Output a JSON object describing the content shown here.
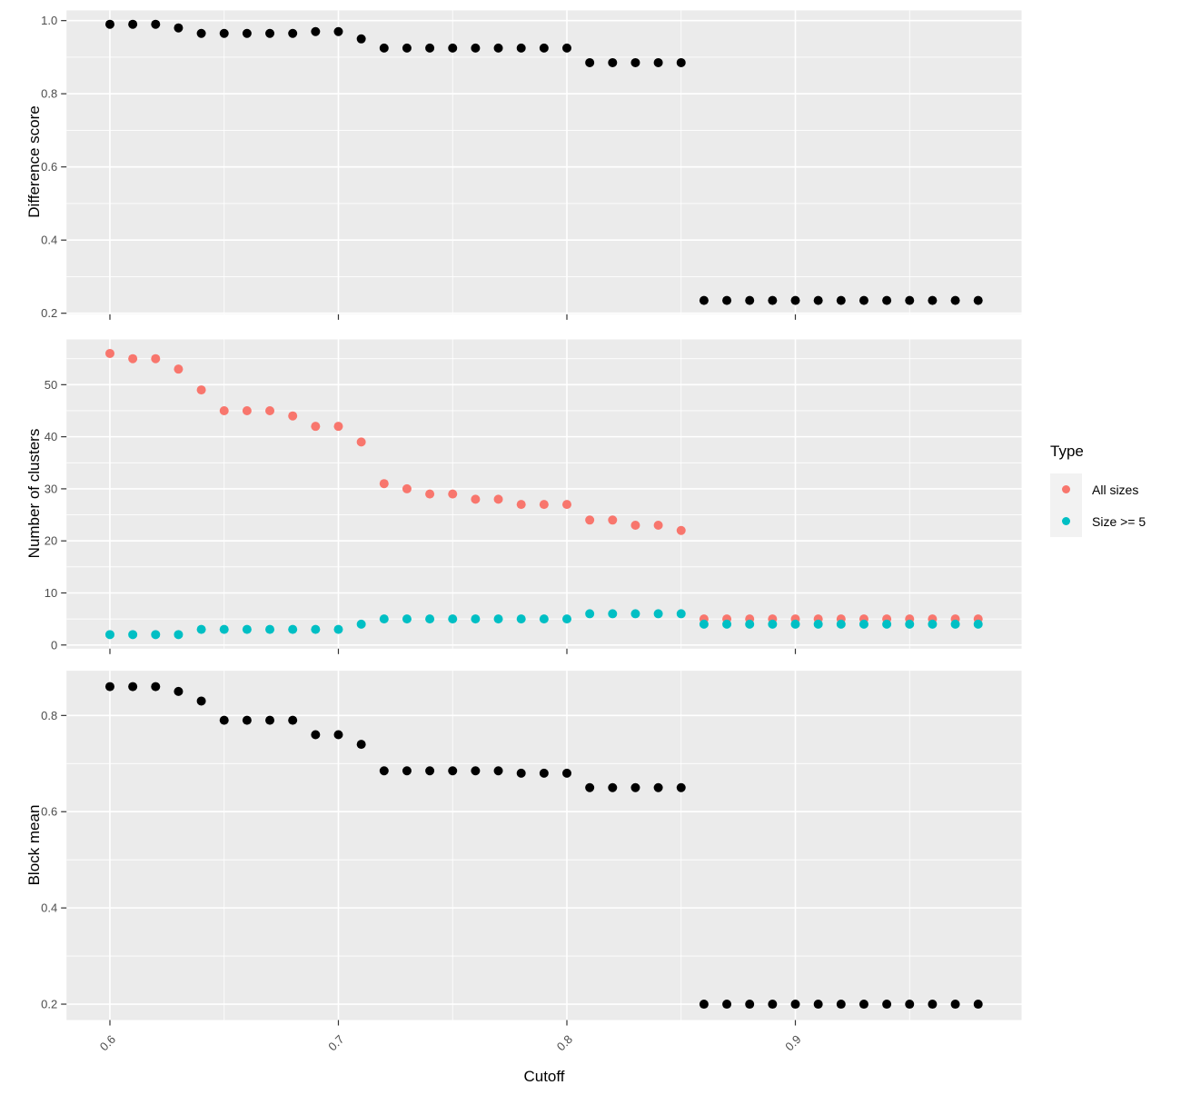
{
  "figure": {
    "x": [
      0.6,
      0.61,
      0.62,
      0.63,
      0.64,
      0.65,
      0.66,
      0.67,
      0.68,
      0.69,
      0.7,
      0.71,
      0.72,
      0.73,
      0.74,
      0.75,
      0.76,
      0.77,
      0.78,
      0.79,
      0.8,
      0.81,
      0.82,
      0.83,
      0.84,
      0.85,
      0.86,
      0.87,
      0.88,
      0.89,
      0.9,
      0.91,
      0.92,
      0.93,
      0.94,
      0.95,
      0.96,
      0.97,
      0.98
    ],
    "x_axis": {
      "label": "Cutoff",
      "domain": [
        0.581,
        0.999
      ],
      "ticks": [
        0.6,
        0.7,
        0.8,
        0.9
      ],
      "tick_labels": [
        "0.6",
        "0.7",
        "0.8",
        "0.9"
      ],
      "minor_ticks": [
        0.65,
        0.75,
        0.85,
        0.95
      ]
    },
    "legend": {
      "title": "Type",
      "items": [
        {
          "label": "All sizes",
          "color_key": "all_sizes"
        },
        {
          "label": "Size >= 5",
          "color_key": "size_ge5"
        }
      ]
    },
    "colors": {
      "panel_bg": "#EBEBEB",
      "grid": "#FFFFFF",
      "axis_text": "#4D4D4D",
      "tick": "#333333",
      "black": "#000000",
      "all_sizes": "#F8766D",
      "size_ge5": "#00BFC4",
      "legend_key_bg": "#F2F2F2"
    }
  },
  "chart_data": [
    {
      "type": "scatter",
      "title": "",
      "xlabel": "Cutoff",
      "ylabel": "Difference score",
      "ylim": [
        0.197,
        1.028
      ],
      "yticks": [
        1.0,
        0.8,
        0.6,
        0.4,
        0.2
      ],
      "ytick_labels": [
        "1.0",
        "0.8",
        "0.6",
        "0.4",
        "0.2"
      ],
      "minor_yticks": [
        0.9,
        0.7,
        0.5,
        0.3
      ],
      "grid": "on",
      "legend_position": "none",
      "series": [
        {
          "name": "Difference score",
          "color_key": "black",
          "values": [
            0.99,
            0.99,
            0.99,
            0.98,
            0.965,
            0.965,
            0.965,
            0.965,
            0.965,
            0.97,
            0.97,
            0.95,
            0.925,
            0.925,
            0.925,
            0.925,
            0.925,
            0.925,
            0.925,
            0.925,
            0.925,
            0.885,
            0.885,
            0.885,
            0.885,
            0.885,
            0.235,
            0.235,
            0.235,
            0.235,
            0.235,
            0.235,
            0.235,
            0.235,
            0.235,
            0.235,
            0.235,
            0.235,
            0.235
          ]
        }
      ]
    },
    {
      "type": "scatter",
      "title": "",
      "xlabel": "Cutoff",
      "ylabel": "Number of clusters",
      "ylim": [
        -0.7,
        58.7
      ],
      "yticks": [
        50,
        40,
        30,
        20,
        10,
        0
      ],
      "ytick_labels": [
        "50",
        "40",
        "30",
        "20",
        "10",
        "0"
      ],
      "minor_yticks": [
        55,
        45,
        35,
        25,
        15,
        5
      ],
      "grid": "on",
      "legend_position": "right",
      "series": [
        {
          "name": "All sizes",
          "color_key": "all_sizes",
          "values": [
            56,
            55,
            55,
            53,
            49,
            45,
            45,
            45,
            44,
            42,
            42,
            39,
            31,
            30,
            29,
            29,
            28,
            28,
            27,
            27,
            27,
            24,
            24,
            23,
            23,
            22,
            5,
            5,
            5,
            5,
            5,
            5,
            5,
            5,
            5,
            5,
            5,
            5,
            5
          ]
        },
        {
          "name": "Size >= 5",
          "color_key": "size_ge5",
          "values": [
            2,
            2,
            2,
            2,
            3,
            3,
            3,
            3,
            3,
            3,
            3,
            4,
            5,
            5,
            5,
            5,
            5,
            5,
            5,
            5,
            5,
            6,
            6,
            6,
            6,
            6,
            4,
            4,
            4,
            4,
            4,
            4,
            4,
            4,
            4,
            4,
            4,
            4,
            4
          ]
        }
      ]
    },
    {
      "type": "scatter",
      "title": "",
      "xlabel": "Cutoff",
      "ylabel": "Block mean",
      "ylim": [
        0.167,
        0.893
      ],
      "yticks": [
        0.8,
        0.6,
        0.4,
        0.2
      ],
      "ytick_labels": [
        "0.8",
        "0.6",
        "0.4",
        "0.2"
      ],
      "minor_yticks": [
        0.7,
        0.5,
        0.3
      ],
      "grid": "on",
      "legend_position": "none",
      "series": [
        {
          "name": "Block mean",
          "color_key": "black",
          "values": [
            0.86,
            0.86,
            0.86,
            0.85,
            0.83,
            0.79,
            0.79,
            0.79,
            0.79,
            0.76,
            0.76,
            0.74,
            0.685,
            0.685,
            0.685,
            0.685,
            0.685,
            0.685,
            0.68,
            0.68,
            0.68,
            0.65,
            0.65,
            0.65,
            0.65,
            0.65,
            0.2,
            0.2,
            0.2,
            0.2,
            0.2,
            0.2,
            0.2,
            0.2,
            0.2,
            0.2,
            0.2,
            0.2,
            0.2
          ]
        }
      ]
    }
  ]
}
